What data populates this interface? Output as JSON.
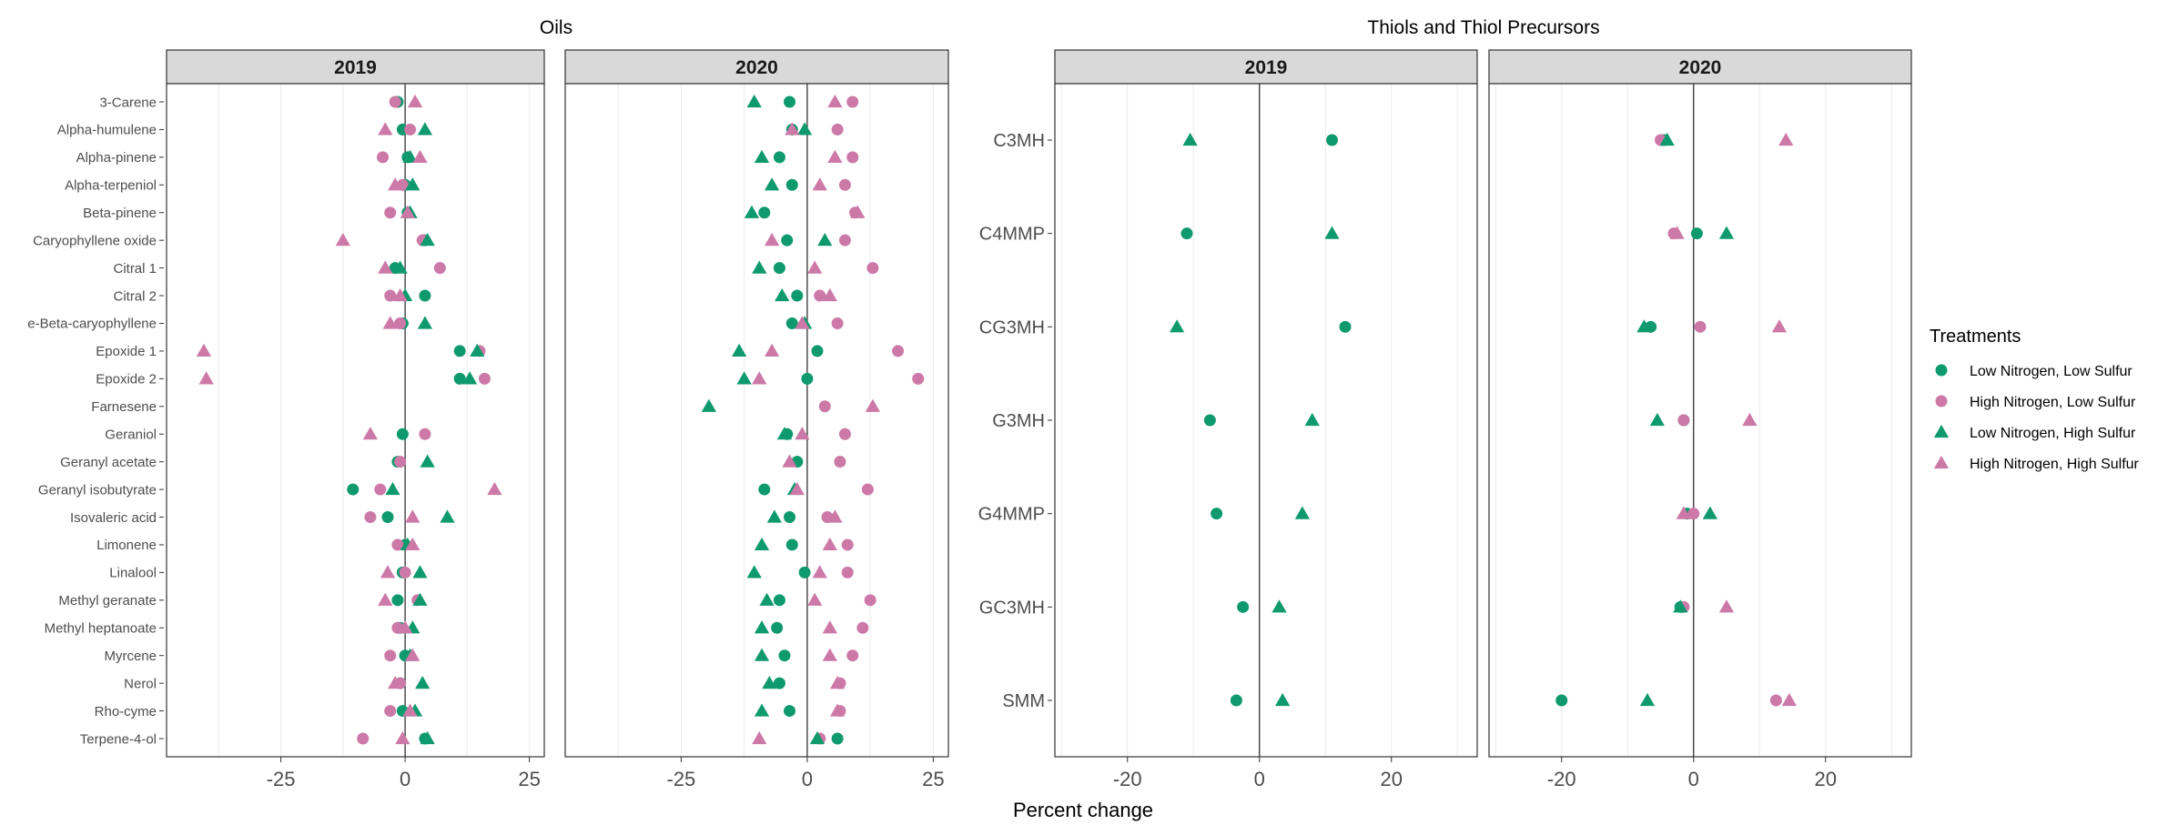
{
  "colors": {
    "green": "#0f9a6e",
    "pink": "#cc79a7",
    "strip_bg": "#d9d9d9",
    "panel_border": "#333333",
    "grid": "#ebebeb",
    "zero_line": "#333333"
  },
  "x_axis_title": "Percent change",
  "legend": {
    "title": "Treatments",
    "placement": "right",
    "entries": [
      {
        "label": "Low Nitrogen, Low Sulfur",
        "color": "green",
        "shape": "circle"
      },
      {
        "label": "High Nitrogen, Low Sulfur",
        "color": "pink",
        "shape": "circle"
      },
      {
        "label": "Low Nitrogen, High Sulfur",
        "color": "green",
        "shape": "triangle"
      },
      {
        "label": "High Nitrogen, High Sulfur",
        "color": "pink",
        "shape": "triangle"
      }
    ]
  },
  "chart_data": [
    {
      "type": "scatter",
      "title": "Oils",
      "xlabel": "Percent change",
      "xlim": [
        -48,
        28
      ],
      "xticks": [
        -25,
        0,
        25
      ],
      "grid": true,
      "facets": [
        "2019",
        "2020"
      ],
      "categories": [
        "3-Carene",
        "Alpha-humulene",
        "Alpha-pinene",
        "Alpha-terpeniol",
        "Beta-pinene",
        "Caryophyllene oxide",
        "Citral 1",
        "Citral 2",
        "e-Beta-caryophyllene",
        "Epoxide 1",
        "Epoxide 2",
        "Farnesene",
        "Geraniol",
        "Geranyl acetate",
        "Geranyl isobutyrate",
        "Isovaleric acid",
        "Limonene",
        "Linalool",
        "Methyl geranate",
        "Methyl heptanoate",
        "Myrcene",
        "Nerol",
        "Rho-cyme",
        "Terpene-4-ol"
      ],
      "series": [
        {
          "name": "Low Nitrogen, Low Sulfur",
          "values_2019": [
            -1.5,
            -0.5,
            0.5,
            0,
            0.5,
            4,
            -2,
            4,
            -0.5,
            11,
            11,
            null,
            -0.5,
            -1.5,
            -10.5,
            -3.5,
            0,
            -0.5,
            -1.5,
            -1,
            0,
            -1,
            -0.5,
            4
          ],
          "values_2020": [
            -3.5,
            -3,
            -5.5,
            -3,
            -8.5,
            -4,
            -5.5,
            -2,
            -3,
            2,
            0,
            null,
            -4,
            -2,
            -8.5,
            -3.5,
            -3,
            -0.5,
            -5.5,
            -6,
            -4.5,
            -5.5,
            -3.5,
            6
          ]
        },
        {
          "name": "High Nitrogen, Low Sulfur",
          "values_2019": [
            -2,
            1,
            -4.5,
            -0.5,
            -3,
            3.5,
            7,
            -3,
            -1,
            15,
            16,
            null,
            4,
            -1,
            -5,
            -7,
            -1.5,
            0,
            2.5,
            -1.5,
            -3,
            -1,
            -3,
            -8.5
          ],
          "values_2020": [
            9,
            6,
            9,
            7.5,
            9.5,
            7.5,
            13,
            2.5,
            6,
            18,
            22,
            3.5,
            7.5,
            6.5,
            12,
            4,
            8,
            8,
            12.5,
            11,
            9,
            6.5,
            6.5,
            2.5
          ]
        },
        {
          "name": "Low Nitrogen, High Sulfur",
          "values_2019": [
            null,
            4,
            1,
            1.5,
            1,
            4.5,
            -1,
            0,
            4,
            14.5,
            13,
            null,
            null,
            4.5,
            -2.5,
            8.5,
            0.5,
            3,
            3,
            1.5,
            1,
            3.5,
            2,
            4.5
          ],
          "values_2020": [
            -10.5,
            -0.5,
            -9,
            -7,
            -11,
            3.5,
            -9.5,
            -5,
            -0.5,
            -13.5,
            -12.5,
            -19.5,
            -4.5,
            null,
            -2.5,
            -6.5,
            -9,
            -10.5,
            -8,
            -9,
            -9,
            -7.5,
            -9,
            2
          ]
        },
        {
          "name": "High Nitrogen, High Sulfur",
          "values_2019": [
            2,
            -4,
            3,
            -2,
            0.5,
            -12.5,
            -4,
            -1,
            -3,
            -40.5,
            -40,
            null,
            -7,
            null,
            18,
            1.5,
            1.5,
            -3.5,
            -4,
            0,
            1.5,
            -2,
            1,
            -0.5
          ],
          "values_2020": [
            5.5,
            -3,
            5.5,
            2.5,
            10,
            -7,
            1.5,
            4.5,
            -1,
            -7,
            -9.5,
            13,
            -1,
            -3.5,
            -2,
            5.5,
            4.5,
            2.5,
            1.5,
            4.5,
            4.5,
            6,
            6,
            -9.5
          ]
        }
      ]
    },
    {
      "type": "scatter",
      "title": "Thiols and Thiol Precursors",
      "xlabel": "Percent change",
      "xlim": [
        -31,
        33
      ],
      "xticks": [
        -20,
        0,
        20
      ],
      "grid": true,
      "facets": [
        "2019",
        "2020"
      ],
      "categories": [
        "C3MH",
        "C4MMP",
        "CG3MH",
        "G3MH",
        "G4MMP",
        "GC3MH",
        "SMM"
      ],
      "series": [
        {
          "name": "Low Nitrogen, Low Sulfur",
          "values_2019": [
            11,
            -11,
            13,
            -7.5,
            -6.5,
            -2.5,
            -3.5
          ],
          "values_2020": [
            -4.5,
            0.5,
            -6.5,
            -1.5,
            -1,
            -2,
            -20
          ]
        },
        {
          "name": "High Nitrogen, Low Sulfur",
          "values_2019": [
            null,
            null,
            null,
            null,
            null,
            null,
            null
          ],
          "values_2020": [
            -5,
            -3,
            1,
            -1.5,
            0,
            -1.5,
            12.5
          ]
        },
        {
          "name": "Low Nitrogen, High Sulfur",
          "values_2019": [
            -10.5,
            11,
            -12.5,
            8,
            6.5,
            3,
            3.5
          ],
          "values_2020": [
            -4,
            5,
            -7.5,
            -5.5,
            2.5,
            -2,
            -7
          ]
        },
        {
          "name": "High Nitrogen, High Sulfur",
          "values_2019": [
            null,
            null,
            null,
            null,
            null,
            null,
            null
          ],
          "values_2020": [
            14,
            -2.5,
            13,
            8.5,
            -1.5,
            5,
            14.5
          ]
        }
      ]
    }
  ]
}
